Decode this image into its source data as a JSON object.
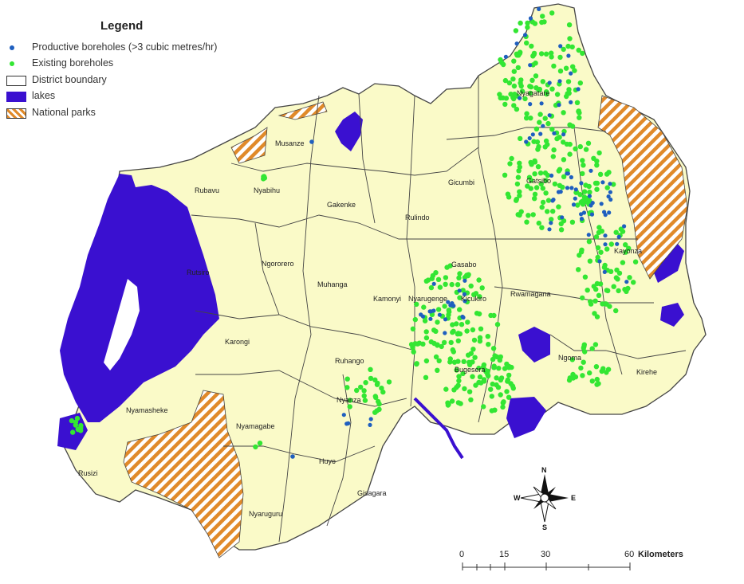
{
  "legend": {
    "title": "Legend",
    "items": [
      {
        "label": "Productive boreholes (>3 cubic metres/hr)",
        "color": "#1f5fbf"
      },
      {
        "label": "Existing boreholes",
        "color": "#33e633"
      },
      {
        "label": "District boundary",
        "color": "#ffffff"
      },
      {
        "label": "lakes",
        "color": "#3a10d0"
      },
      {
        "label": "National parks",
        "color": "#e08a2a"
      }
    ]
  },
  "colors": {
    "land": "#fafac8",
    "boundary": "#444444",
    "lake": "#3a10d0",
    "park": "#e08a2a",
    "productive": "#1f5fbf",
    "existing": "#33e633"
  },
  "districts": [
    "Musanze",
    "Rubavu",
    "Nyabihu",
    "Gakenke",
    "Rulindo",
    "Gicumbi",
    "Nyagatare",
    "Gatsibo",
    "Kayonza",
    "Rutsiro",
    "Ngororero",
    "Muhanga",
    "Kamonyi",
    "Nyarugenge",
    "Gasabo",
    "Kicukiro",
    "Rwamagana",
    "Karongi",
    "Ruhango",
    "Nyanza",
    "Bugesera",
    "Ngoma",
    "Kirehe",
    "Nyamasheke",
    "Nyamagabe",
    "Huye",
    "Gisagara",
    "Rusizi",
    "Nyaruguru"
  ],
  "compass": {
    "n": "N",
    "s": "S",
    "e": "E",
    "w": "W"
  },
  "scale": {
    "ticks": [
      "0",
      "15",
      "30",
      "60"
    ],
    "unit": "Kilometers"
  }
}
